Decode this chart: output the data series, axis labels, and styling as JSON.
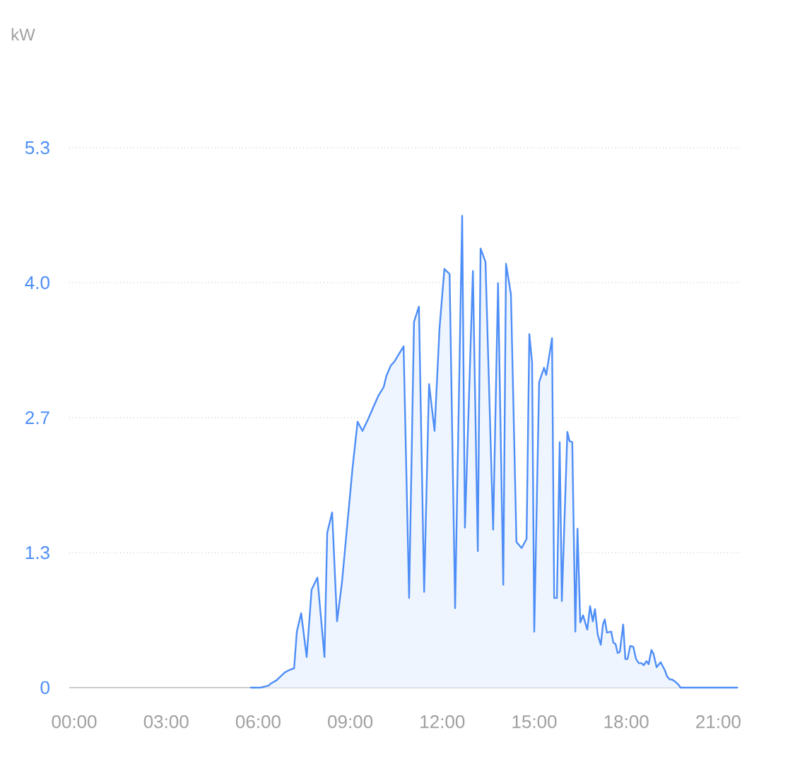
{
  "chart_data": {
    "type": "area",
    "annotations": [
      "kW"
    ],
    "x": [
      5.76,
      6.08,
      6.2,
      6.34,
      6.41,
      6.59,
      6.73,
      6.87,
      7.0,
      7.17,
      7.26,
      7.4,
      7.58,
      7.74,
      7.93,
      8.16,
      8.25,
      8.41,
      8.57,
      8.73,
      8.92,
      9.08,
      9.24,
      9.4,
      9.59,
      9.75,
      9.91,
      10.09,
      10.18,
      10.32,
      10.44,
      10.6,
      10.74,
      10.92,
      11.08,
      11.24,
      11.41,
      11.57,
      11.75,
      11.91,
      12.07,
      12.24,
      12.42,
      12.65,
      12.74,
      13.0,
      13.16,
      13.25,
      13.41,
      13.66,
      13.82,
      13.99,
      14.08,
      14.24,
      14.42,
      14.59,
      14.75,
      14.84,
      14.93,
      15.0,
      15.16,
      15.32,
      15.39,
      15.58,
      15.65,
      15.74,
      15.83,
      15.9,
      16.08,
      16.15,
      16.24,
      16.34,
      16.41,
      16.5,
      16.59,
      16.73,
      16.82,
      16.91,
      16.98,
      17.07,
      17.17,
      17.24,
      17.3,
      17.37,
      17.51,
      17.58,
      17.65,
      17.72,
      17.79,
      17.9,
      17.97,
      18.04,
      18.13,
      18.23,
      18.32,
      18.41,
      18.5,
      18.57,
      18.66,
      18.73,
      18.82,
      18.89,
      18.99,
      19.12,
      19.26,
      19.33,
      19.42,
      19.49,
      19.59,
      19.7,
      19.77,
      19.82,
      19.91,
      21.61
    ],
    "values": [
      0,
      0,
      0.01,
      0.02,
      0.04,
      0.07,
      0.11,
      0.15,
      0.17,
      0.19,
      0.55,
      0.73,
      0.3,
      0.96,
      1.08,
      0.3,
      1.52,
      1.72,
      0.65,
      1.03,
      1.65,
      2.17,
      2.61,
      2.52,
      2.64,
      2.75,
      2.86,
      2.95,
      3.06,
      3.16,
      3.2,
      3.28,
      3.35,
      0.88,
      3.59,
      3.74,
      0.94,
      2.98,
      2.52,
      3.52,
      4.11,
      4.06,
      0.78,
      4.63,
      1.57,
      4.09,
      1.34,
      4.31,
      4.18,
      1.55,
      3.97,
      1.01,
      4.16,
      3.86,
      1.43,
      1.37,
      1.46,
      3.47,
      3.19,
      0.55,
      3.0,
      3.14,
      3.07,
      3.43,
      0.88,
      0.88,
      2.41,
      0.85,
      2.51,
      2.42,
      2.41,
      0.55,
      1.56,
      0.64,
      0.71,
      0.57,
      0.8,
      0.65,
      0.77,
      0.52,
      0.42,
      0.62,
      0.67,
      0.54,
      0.55,
      0.44,
      0.43,
      0.34,
      0.35,
      0.62,
      0.28,
      0.28,
      0.41,
      0.4,
      0.28,
      0.24,
      0.24,
      0.22,
      0.26,
      0.23,
      0.37,
      0.33,
      0.2,
      0.25,
      0.17,
      0.11,
      0.08,
      0.08,
      0.06,
      0.03,
      0,
      0,
      0,
      0
    ],
    "color": "#4e8ef7",
    "xlim": [
      -0.16,
      21.66
    ],
    "xticks": [
      {
        "value": 0,
        "label": "00:00"
      },
      {
        "value": 3,
        "label": "03:00"
      },
      {
        "value": 6,
        "label": "06:00"
      },
      {
        "value": 9,
        "label": "09:00"
      },
      {
        "value": 12,
        "label": "12:00"
      },
      {
        "value": 15,
        "label": "15:00"
      },
      {
        "value": 18,
        "label": "18:00"
      },
      {
        "value": 21,
        "label": "21:00"
      }
    ],
    "ylim": [
      0,
      5.3
    ],
    "yticks": [
      0,
      {
        "value": 1.325,
        "label": "1.3"
      },
      {
        "value": 2.65,
        "label": "2.7"
      },
      {
        "value": 3.975,
        "label": "4.0"
      },
      5.3
    ],
    "grid": "y"
  }
}
